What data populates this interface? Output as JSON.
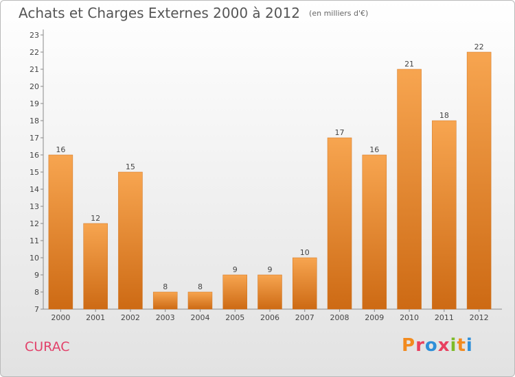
{
  "header": {
    "title": "Achats et Charges Externes 2000 à 2012",
    "subtitle": "(en milliers d'€)"
  },
  "commune": "CURAC",
  "brand": {
    "letters": [
      "P",
      "r",
      "o",
      "x",
      "i",
      "t",
      "i"
    ],
    "colors": [
      "#f28a1e",
      "#e8405f",
      "#2e8fd8",
      "#e8405f",
      "#7dbb28",
      "#f28a1e",
      "#2e8fd8"
    ]
  },
  "colors": {
    "bar_light": "#f7a550",
    "bar_dark": "#cd6a14",
    "text": "#444444"
  },
  "chart_data": {
    "type": "bar",
    "title": "Achats et Charges Externes 2000 à 2012",
    "subtitle": "(en milliers d'€)",
    "categories": [
      "2000",
      "2001",
      "2002",
      "2003",
      "2004",
      "2005",
      "2006",
      "2007",
      "2008",
      "2009",
      "2010",
      "2011",
      "2012"
    ],
    "values": [
      16,
      12,
      15,
      8,
      8,
      9,
      9,
      10,
      17,
      16,
      21,
      18,
      22
    ],
    "ylim": [
      7,
      23
    ],
    "yticks": [
      7,
      8,
      9,
      10,
      11,
      12,
      13,
      14,
      15,
      16,
      17,
      18,
      19,
      20,
      21,
      22,
      23
    ],
    "grid": false,
    "legend": "none"
  }
}
